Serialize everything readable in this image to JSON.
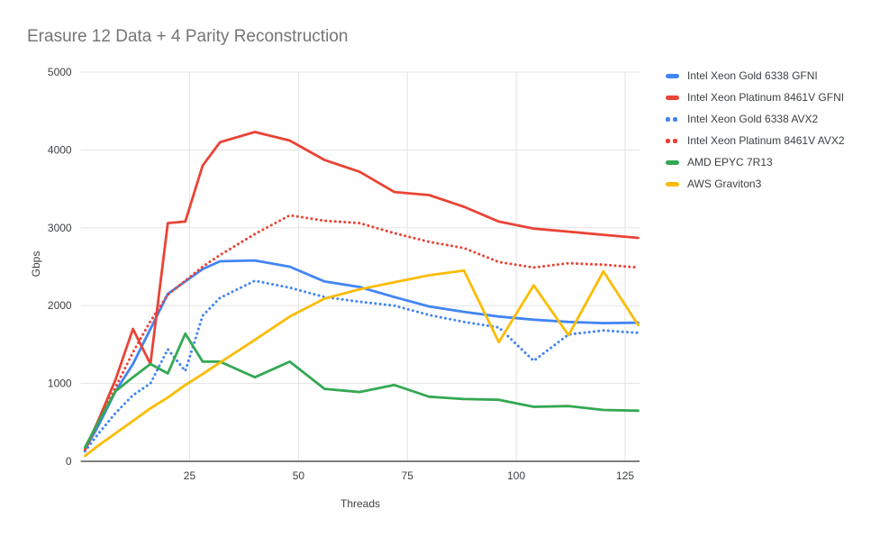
{
  "title": "Erasure 12 Data + 4 Parity Reconstruction",
  "chart_data": {
    "type": "line",
    "title": "Erasure 12 Data + 4 Parity Reconstruction",
    "xlabel": "Threads",
    "ylabel": "Gbps",
    "xlim": [
      0,
      128.3
    ],
    "ylim": [
      0,
      5000
    ],
    "x_ticks": [
      25,
      50,
      75,
      100,
      125
    ],
    "y_ticks": [
      0,
      1000,
      2000,
      3000,
      4000,
      5000
    ],
    "grid": true,
    "legend_position": "right",
    "x": [
      1,
      4,
      8,
      12,
      16,
      20,
      24,
      28,
      32,
      40,
      48,
      56,
      64,
      72,
      80,
      88,
      96,
      104,
      112,
      120,
      128
    ],
    "series": [
      {
        "name": "Intel Xeon Gold 6338 GFNI",
        "color": "#4285f4",
        "style": "solid",
        "values": [
          150,
          450,
          900,
          1250,
          1700,
          2150,
          2310,
          2470,
          2570,
          2580,
          2500,
          2310,
          2240,
          2110,
          1990,
          1920,
          1860,
          1820,
          1790,
          1775,
          1780
        ]
      },
      {
        "name": "Intel Xeon Platinum 8461V GFNI",
        "color": "#ea4335",
        "style": "solid",
        "values": [
          150,
          520,
          1050,
          1700,
          1250,
          3060,
          3080,
          3800,
          4100,
          4230,
          4120,
          3870,
          3720,
          3460,
          3420,
          3270,
          3080,
          2990,
          2950,
          2910,
          2870
        ]
      },
      {
        "name": "Intel Xeon Gold 6338 AVX2",
        "color": "#4285f4",
        "style": "dotted",
        "values": [
          130,
          350,
          620,
          850,
          1000,
          1440,
          1160,
          1870,
          2100,
          2320,
          2230,
          2110,
          2050,
          2000,
          1880,
          1790,
          1720,
          1290,
          1630,
          1680,
          1650
        ]
      },
      {
        "name": "Intel Xeon Platinum 8461V AVX2",
        "color": "#ea4335",
        "style": "dotted",
        "values": [
          150,
          500,
          950,
          1400,
          1800,
          2140,
          2320,
          2500,
          2650,
          2920,
          3160,
          3090,
          3060,
          2930,
          2820,
          2740,
          2560,
          2490,
          2545,
          2525,
          2490
        ]
      },
      {
        "name": "AMD EPYC 7R13",
        "color": "#34a853",
        "style": "solid",
        "values": [
          180,
          500,
          900,
          1080,
          1250,
          1130,
          1640,
          1280,
          1280,
          1080,
          1280,
          930,
          890,
          980,
          830,
          800,
          790,
          700,
          710,
          660,
          650
        ]
      },
      {
        "name": "AWS Graviton3",
        "color": "#fbbc04",
        "style": "solid",
        "values": [
          70,
          200,
          360,
          520,
          680,
          820,
          980,
          1120,
          1270,
          1560,
          1860,
          2090,
          2210,
          2300,
          2390,
          2450,
          1530,
          2260,
          1620,
          2440,
          1750
        ]
      }
    ]
  },
  "colors": {
    "gridline": "#e3e3e3",
    "axis_line": "#333333",
    "tick_label": "#3c4043",
    "title": "#757575"
  }
}
